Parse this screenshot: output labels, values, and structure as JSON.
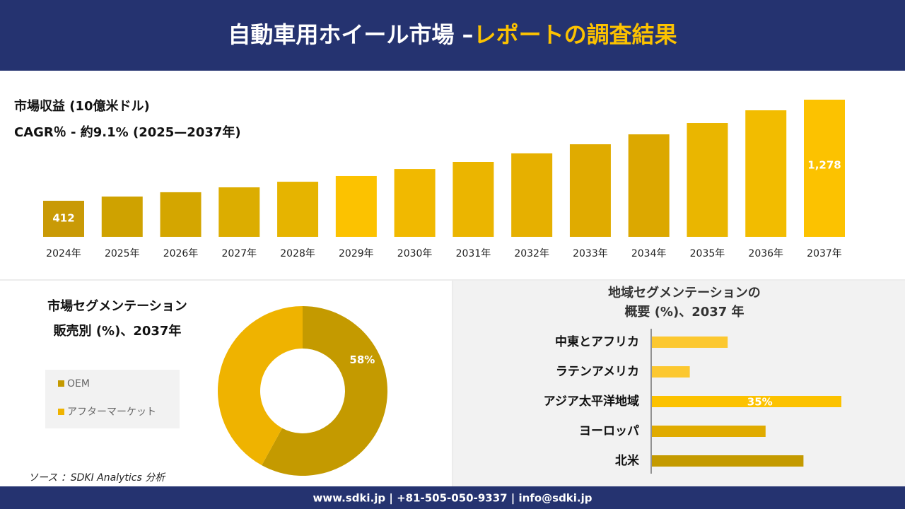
{
  "header": {
    "title_main": "自動車用ホイール市場 –",
    "title_accent": "レポートの調査結果"
  },
  "chart_data": [
    {
      "type": "bar",
      "title": "市場収益 (10億米ドル)",
      "subtitle": "CAGR％ - 約9.1% (2025—2037年)",
      "categories": [
        "2024年",
        "2025年",
        "2026年",
        "2027年",
        "2028年",
        "2029年",
        "2030年",
        "2031年",
        "2032年",
        "2033年",
        "2034年",
        "2035年",
        "2036年",
        "2037年"
      ],
      "values": [
        412,
        448,
        485,
        527,
        575,
        624,
        684,
        745,
        818,
        896,
        981,
        1078,
        1187,
        1278
      ],
      "value_labels": [
        "412",
        null,
        null,
        null,
        null,
        null,
        null,
        null,
        null,
        null,
        null,
        null,
        null,
        "1,278"
      ],
      "colors": [
        "#c99a06",
        "#cfa200",
        "#d4a600",
        "#dcad00",
        "#e6b400",
        "#fcc200",
        "#f1b900",
        "#ebb500",
        "#e6b000",
        "#e0ab00",
        "#dca800",
        "#eab600",
        "#f2bc00",
        "#fcc200"
      ]
    },
    {
      "type": "donut",
      "title": "市場セグメンテーション",
      "subtitle": "販売別 (%)、2037年",
      "categories": [
        "OEM",
        "アフターマーケット"
      ],
      "values": [
        58,
        42
      ],
      "value_labels": [
        "58%",
        null
      ],
      "colors": [
        "#c49a00",
        "#efb300"
      ]
    },
    {
      "type": "hbar",
      "title": [
        "地域セグメンテーションの",
        "概要 (%)、2037 年"
      ],
      "categories": [
        "中東とアフリカ",
        "ラテンアメリカ",
        "アジア太平洋地域",
        "ヨーロッパ",
        "北米"
      ],
      "values": [
        14,
        7,
        35,
        21,
        28
      ],
      "value_labels": [
        null,
        null,
        "35%",
        null,
        null
      ],
      "colors": [
        "#fcc830",
        "#fcc830",
        "#fcc200",
        "#e0ab00",
        "#c49a00"
      ]
    }
  ],
  "source": "ソース ：SDKI Analytics 分析",
  "footer": "www.sdki.jp | +81-505-050-9337 | info@sdki.jp"
}
